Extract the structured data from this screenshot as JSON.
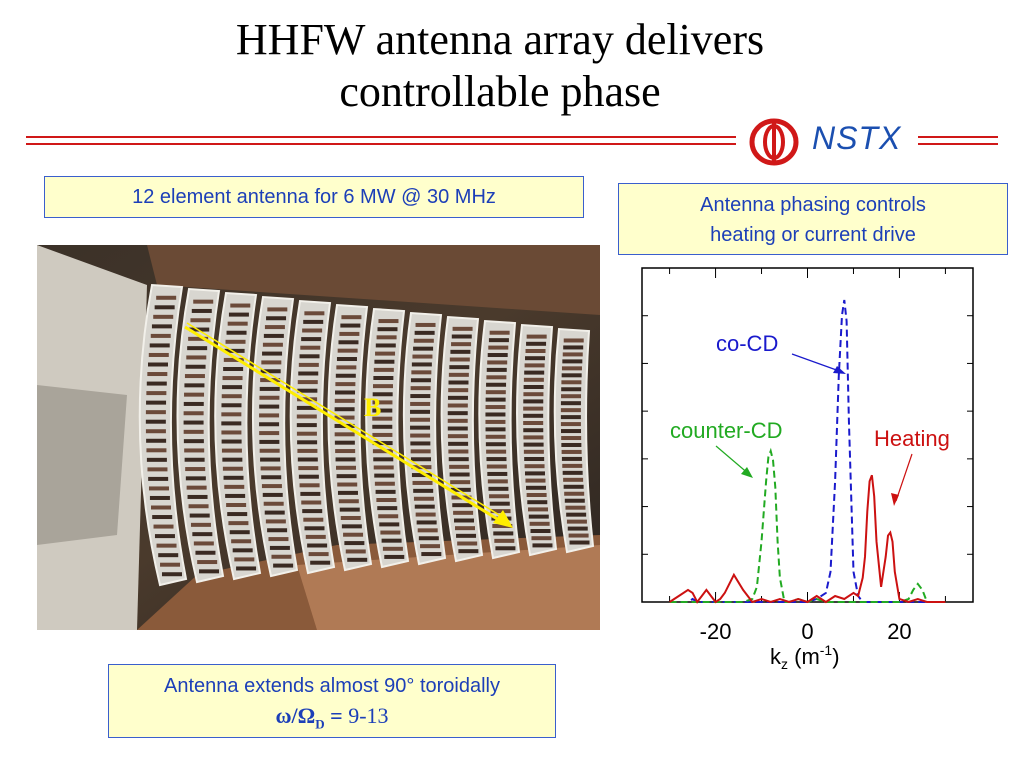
{
  "title_line1": "HHFW antenna array delivers",
  "title_line2": "controllable phase",
  "logo": {
    "text": "NSTX",
    "icon": "nstx-logo-icon"
  },
  "antenna_spec": "12 element antenna for  6 MW @ 30 MHz",
  "phasing_box": {
    "line1": "Antenna phasing controls",
    "line2": "heating or current drive"
  },
  "photo": {
    "field_label": "B",
    "field_arrow_color": "#ffee00"
  },
  "extent_box": {
    "line1": "Antenna extends almost 90° toroidally",
    "formula_lhs": "ω/Ω",
    "formula_sub": "D",
    "formula_eq": " = ",
    "formula_rhs": "9-13"
  },
  "chart_data": {
    "type": "line",
    "xlabel_main": "k",
    "xlabel_sub": "z",
    "xlabel_unit_pre": " (m",
    "xlabel_unit_sup": "-1",
    "xlabel_unit_post": ")",
    "xticks": [
      "-20",
      "0",
      "20"
    ],
    "xlim": [
      -36,
      36
    ],
    "ylim": [
      0,
      1
    ],
    "series": [
      {
        "name": "co-CD",
        "color": "#1a1acc",
        "dash": "dashed",
        "x": [
          -30,
          -26,
          -25,
          -24,
          -22,
          -20,
          -18,
          -16,
          -14,
          -12,
          -10,
          -8,
          -6,
          -4,
          -2,
          0,
          2,
          4,
          5,
          6,
          6.8,
          7.5,
          8,
          8.5,
          9,
          10,
          11,
          12,
          14,
          16,
          18,
          20,
          22,
          24,
          26,
          28,
          30
        ],
        "y": [
          0,
          0,
          0.01,
          0,
          0,
          0,
          0,
          0,
          0,
          0,
          0,
          0,
          0,
          0,
          0,
          0,
          0.01,
          0.03,
          0.1,
          0.4,
          0.75,
          0.95,
          1.0,
          0.93,
          0.6,
          0.1,
          0.02,
          0,
          0,
          0,
          0,
          0,
          0,
          0,
          0,
          0,
          0
        ]
      },
      {
        "name": "counter-CD",
        "color": "#22aa22",
        "dash": "dashed",
        "x": [
          -30,
          -20,
          -14,
          -12,
          -11,
          -10,
          -9,
          -8.5,
          -8,
          -7.5,
          -7,
          -6.5,
          -6,
          -5,
          -4,
          -2,
          0,
          2,
          4,
          6,
          10,
          14,
          18,
          20,
          22,
          23,
          24,
          25,
          26,
          30
        ],
        "y": [
          0,
          0,
          0,
          0.01,
          0.05,
          0.2,
          0.4,
          0.48,
          0.5,
          0.47,
          0.38,
          0.2,
          0.08,
          0,
          0,
          0.01,
          0,
          0.01,
          0,
          0,
          0,
          0,
          0,
          0,
          0.01,
          0.04,
          0.06,
          0.04,
          0,
          0
        ]
      },
      {
        "name": "Heating",
        "color": "#cc1111",
        "dash": "solid",
        "x": [
          -30,
          -28,
          -26,
          -25,
          -24,
          -23,
          -22,
          -21,
          -20,
          -19,
          -18,
          -16,
          -14,
          -12,
          -10,
          -8,
          -6,
          -4,
          -2,
          0,
          2,
          4,
          6,
          8,
          10,
          11,
          12,
          12.5,
          13,
          13.5,
          14,
          14.5,
          15,
          16,
          17,
          17.5,
          18,
          18.5,
          19,
          20,
          22,
          24,
          26,
          28,
          30
        ],
        "y": [
          0,
          0.02,
          0.04,
          0.03,
          0,
          0.02,
          0.04,
          0.02,
          0,
          0.01,
          0.03,
          0.09,
          0.04,
          0,
          0.01,
          0,
          0.01,
          0,
          0.01,
          0,
          0.02,
          0,
          0.02,
          0.01,
          0.03,
          0.02,
          0.08,
          0.15,
          0.3,
          0.4,
          0.42,
          0.35,
          0.2,
          0.05,
          0.15,
          0.22,
          0.23,
          0.2,
          0.1,
          0.01,
          0,
          0.01,
          0,
          0,
          0
        ]
      }
    ],
    "annotations": [
      {
        "text": "co-CD",
        "color": "#1a1acc"
      },
      {
        "text": "counter-CD",
        "color": "#22aa22"
      },
      {
        "text": "Heating",
        "color": "#cc1111"
      }
    ]
  }
}
